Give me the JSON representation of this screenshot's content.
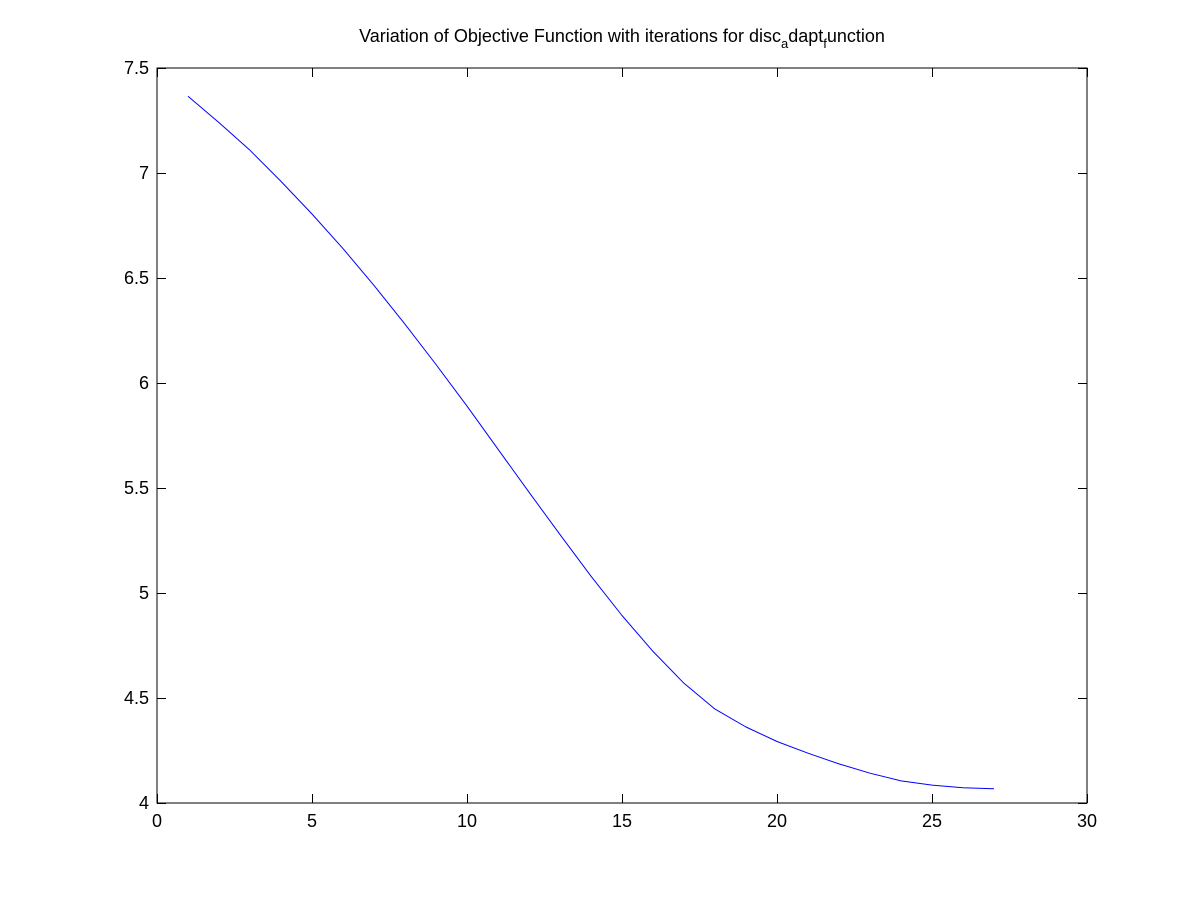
{
  "chart_data": {
    "type": "line",
    "title": {
      "parts": [
        {
          "text": "Variation of Objective Function with iterations for disc",
          "sub": false
        },
        {
          "text": "a",
          "sub": true
        },
        {
          "text": "dapt",
          "sub": false
        },
        {
          "text": "f",
          "sub": true
        },
        {
          "text": "unction",
          "sub": false
        }
      ]
    },
    "xlabel": "",
    "ylabel": "",
    "xlim": [
      0,
      30
    ],
    "ylim": [
      4,
      7.5
    ],
    "xticks": [
      0,
      5,
      10,
      15,
      20,
      25,
      30
    ],
    "xtick_labels": [
      "0",
      "5",
      "10",
      "15",
      "20",
      "25",
      "30"
    ],
    "yticks": [
      4,
      4.5,
      5,
      5.5,
      6,
      6.5,
      7,
      7.5
    ],
    "ytick_labels": [
      "4",
      "4.5",
      "5",
      "5.5",
      "6",
      "6.5",
      "7",
      "7.5"
    ],
    "grid": false,
    "legend": "none",
    "line_color": "#0000ff",
    "series": [
      {
        "x": [
          1,
          2,
          3,
          4,
          5,
          6,
          7,
          8,
          9,
          10,
          11,
          12,
          13,
          14,
          15,
          16,
          17,
          18,
          19,
          20,
          21,
          22,
          23,
          24,
          25,
          26,
          27
        ],
        "values": [
          7.365,
          7.24,
          7.108,
          6.96,
          6.805,
          6.64,
          6.465,
          6.28,
          6.088,
          5.89,
          5.685,
          5.48,
          5.278,
          5.08,
          4.893,
          4.722,
          4.57,
          4.447,
          4.362,
          4.293,
          4.237,
          4.186,
          4.142,
          4.105,
          4.085,
          4.073,
          4.068
        ]
      }
    ]
  }
}
